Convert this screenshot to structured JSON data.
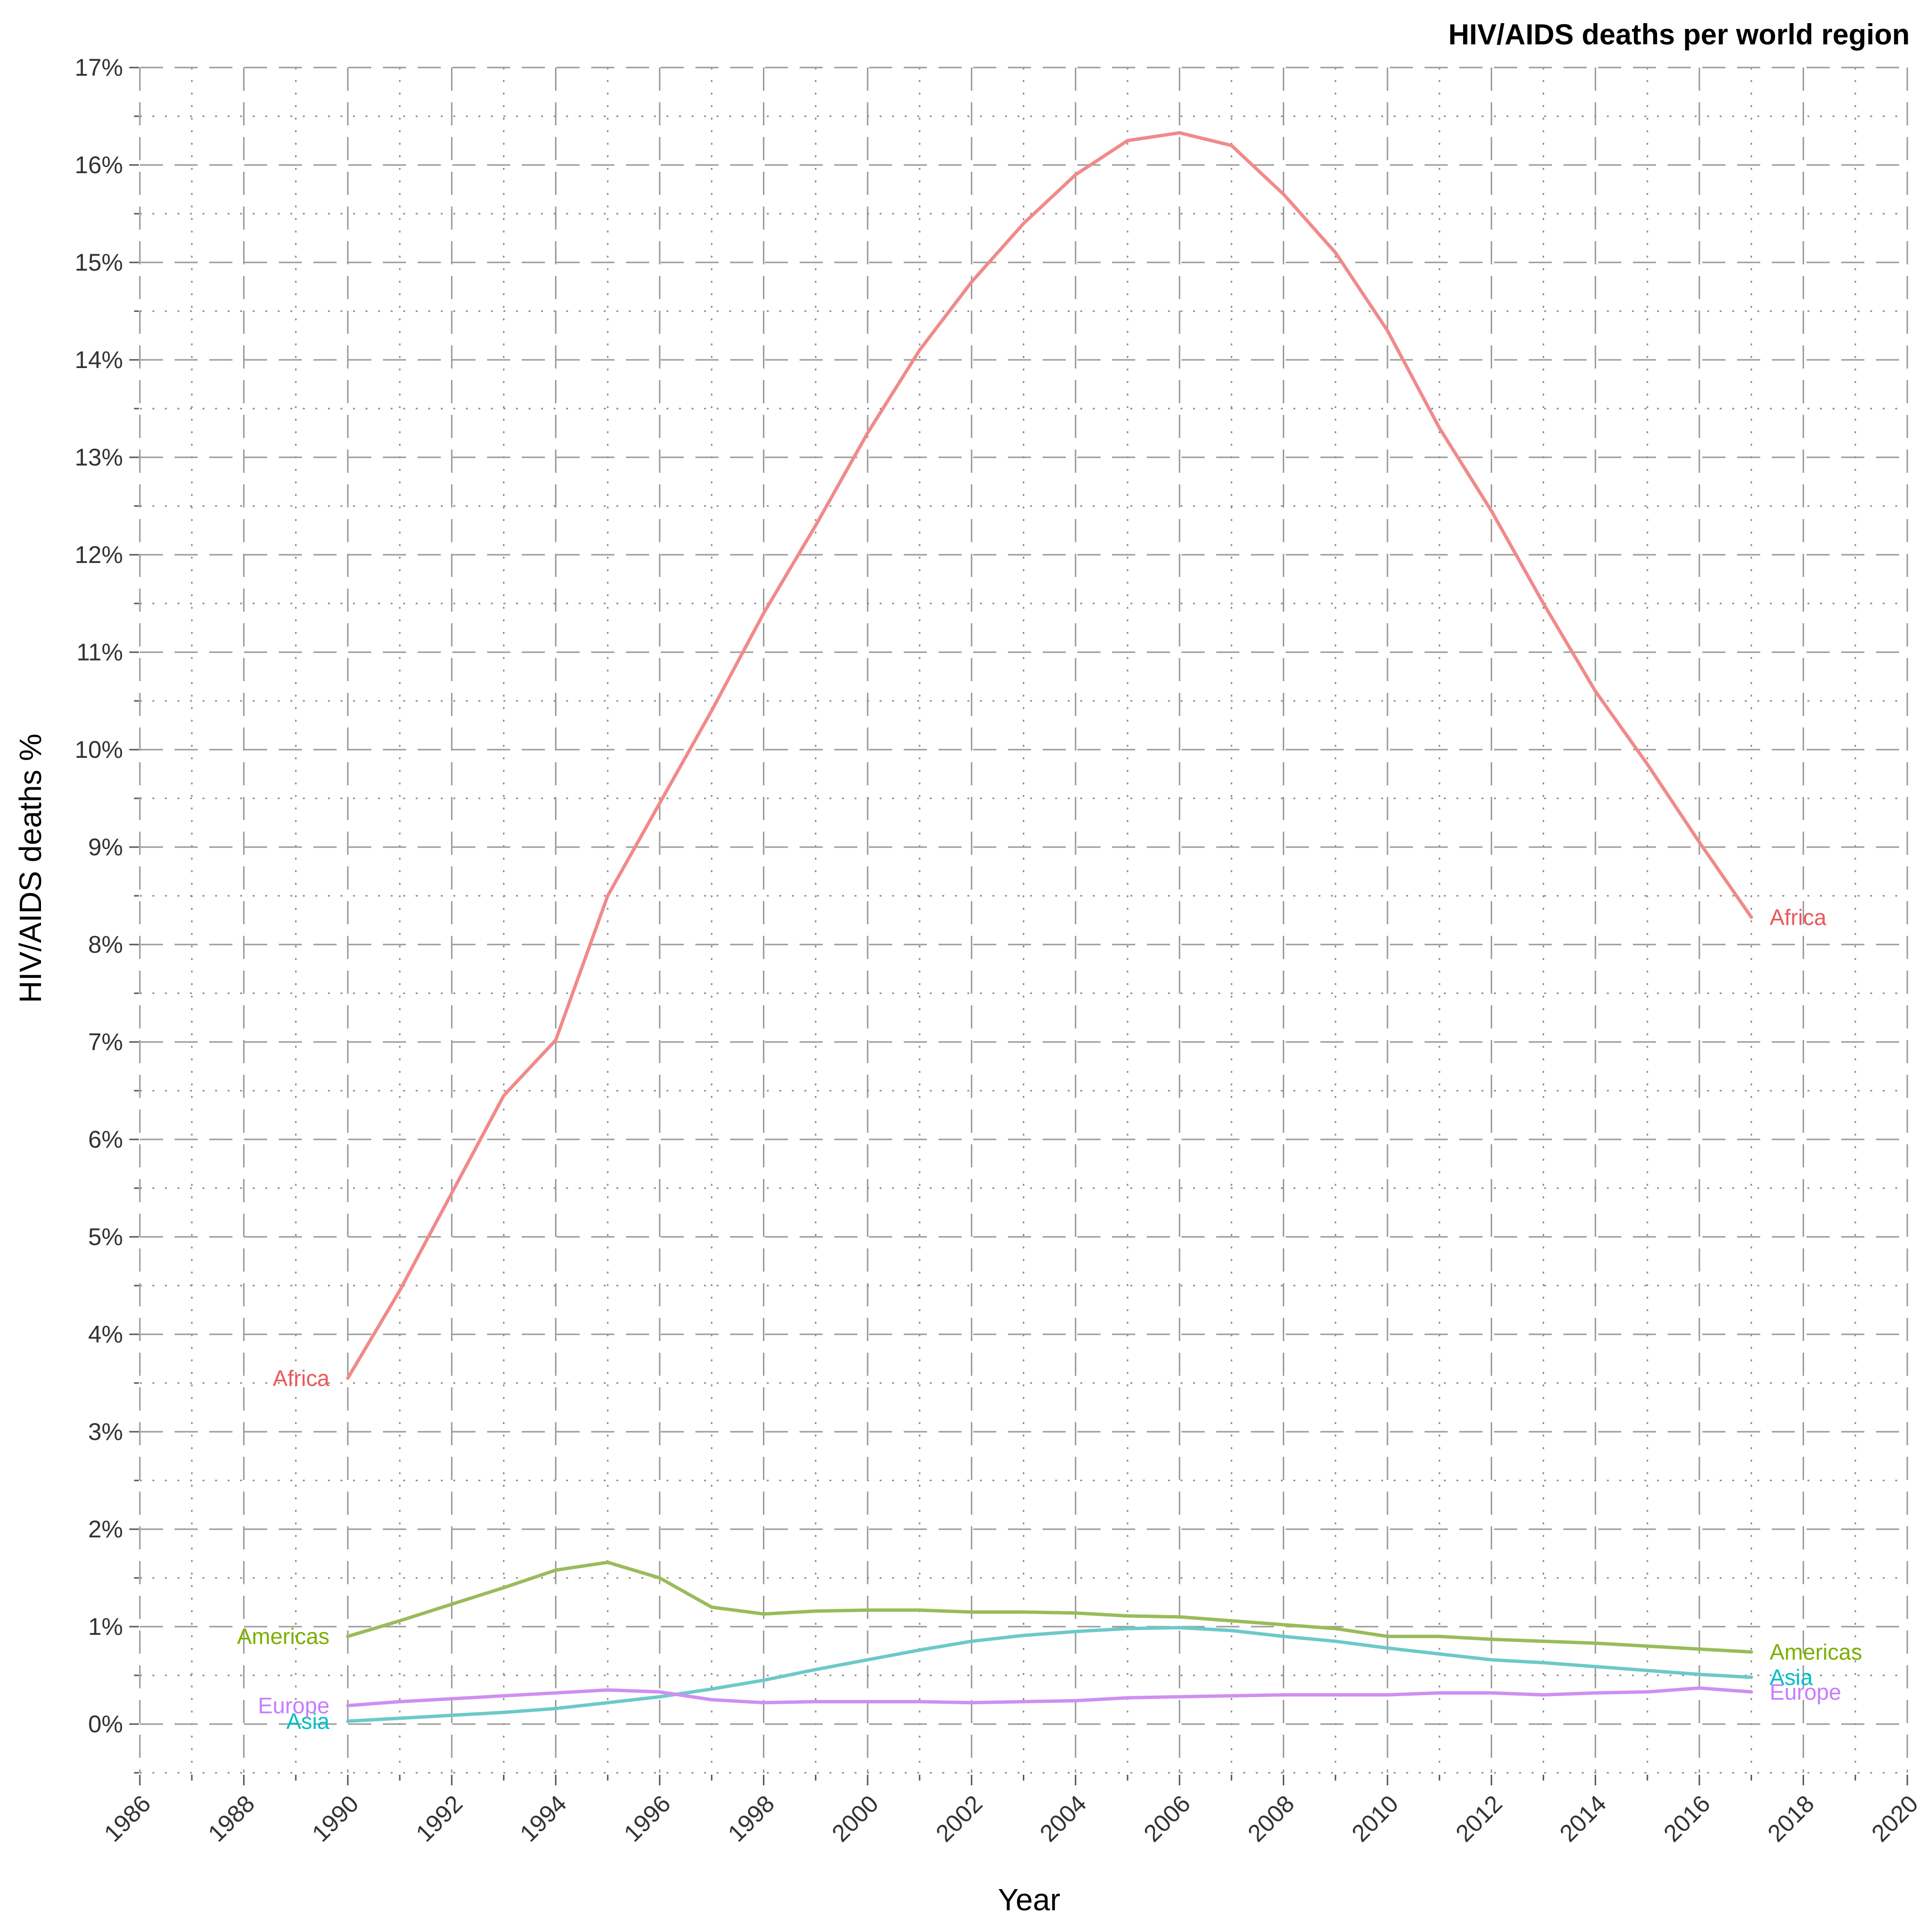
{
  "chart_data": {
    "type": "line",
    "title": "HIV/AIDS deaths per world region",
    "xlabel": "Year",
    "ylabel": "HIV/AIDS deaths %",
    "xlim": [
      1986,
      2020
    ],
    "ylim": [
      -0.5,
      17
    ],
    "x_ticks": [
      1986,
      1988,
      1990,
      1992,
      1994,
      1996,
      1998,
      2000,
      2002,
      2004,
      2006,
      2008,
      2010,
      2012,
      2014,
      2016,
      2018,
      2020
    ],
    "y_ticks": [
      0,
      1,
      2,
      3,
      4,
      5,
      6,
      7,
      8,
      9,
      10,
      11,
      12,
      13,
      14,
      15,
      16,
      17
    ],
    "y_tick_suffix": "%",
    "grid": true,
    "legend": "none",
    "x": [
      1990,
      1991,
      1992,
      1993,
      1994,
      1995,
      1996,
      1997,
      1998,
      1999,
      2000,
      2001,
      2002,
      2003,
      2004,
      2005,
      2006,
      2007,
      2008,
      2009,
      2010,
      2011,
      2012,
      2013,
      2014,
      2015,
      2016,
      2017
    ],
    "series": [
      {
        "name": "Africa",
        "color": "#F08A8A",
        "label_color": "#E8595A",
        "values": [
          3.55,
          4.45,
          5.45,
          6.45,
          7.02,
          8.5,
          9.45,
          10.4,
          11.4,
          12.3,
          13.25,
          14.1,
          14.8,
          15.4,
          15.9,
          16.25,
          16.33,
          16.2,
          15.7,
          15.1,
          14.3,
          13.3,
          12.45,
          11.5,
          10.6,
          9.85,
          9.05,
          8.28
        ]
      },
      {
        "name": "Americas",
        "color": "#98BC5A",
        "label_color": "#7CAE00",
        "values": [
          0.9,
          1.06,
          1.23,
          1.4,
          1.58,
          1.66,
          1.5,
          1.2,
          1.13,
          1.16,
          1.17,
          1.17,
          1.15,
          1.15,
          1.14,
          1.11,
          1.1,
          1.06,
          1.02,
          0.98,
          0.9,
          0.9,
          0.87,
          0.85,
          0.83,
          0.8,
          0.77,
          0.74
        ]
      },
      {
        "name": "Asia",
        "color": "#6CC9C9",
        "label_color": "#00BFC4",
        "values": [
          0.03,
          0.06,
          0.09,
          0.12,
          0.16,
          0.22,
          0.28,
          0.36,
          0.45,
          0.56,
          0.66,
          0.76,
          0.85,
          0.91,
          0.95,
          0.98,
          0.99,
          0.96,
          0.9,
          0.85,
          0.78,
          0.72,
          0.66,
          0.63,
          0.59,
          0.55,
          0.51,
          0.48
        ]
      },
      {
        "name": "Europe",
        "color": "#CF8FF2",
        "label_color": "#C77CFF",
        "values": [
          0.19,
          0.23,
          0.26,
          0.29,
          0.32,
          0.35,
          0.33,
          0.25,
          0.22,
          0.23,
          0.23,
          0.23,
          0.22,
          0.23,
          0.24,
          0.27,
          0.28,
          0.29,
          0.3,
          0.3,
          0.3,
          0.32,
          0.32,
          0.3,
          0.32,
          0.33,
          0.37,
          0.33
        ]
      }
    ]
  }
}
